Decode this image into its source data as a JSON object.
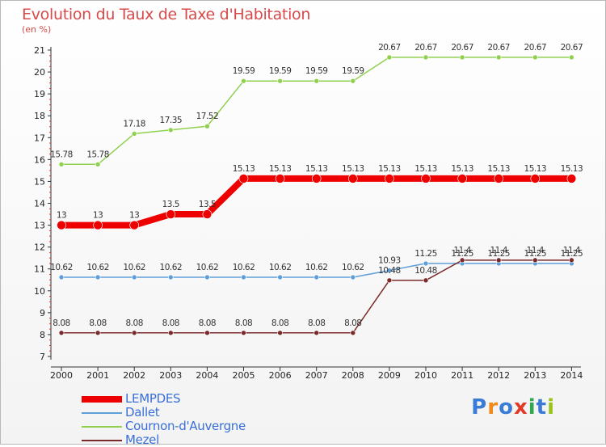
{
  "title": "Evolution du Taux de Taxe d'Habitation",
  "unit_label": "(en %)",
  "brand": {
    "letters": [
      "P",
      "r",
      "o",
      "x",
      "i",
      "t",
      "i"
    ],
    "colors": [
      "#3a7bd5",
      "#f08a1c",
      "#3a7bd5",
      "#e23a2a",
      "#2fa84f",
      "#3a7bd5",
      "#9bc21a"
    ]
  },
  "chart_data": {
    "type": "line",
    "title": "Evolution du Taux de Taxe d'Habitation",
    "ylabel": "(en %)",
    "xlabel": "",
    "ylim": [
      7,
      21
    ],
    "yticks": [
      "7",
      "8",
      "9",
      "10",
      "11",
      "12",
      "13",
      "14",
      "15",
      "16",
      "17",
      "18",
      "19",
      "20",
      "21"
    ],
    "x": [
      "2000",
      "2001",
      "2002",
      "2003",
      "2004",
      "2005",
      "2006",
      "2007",
      "2008",
      "2009",
      "2010",
      "2011",
      "2012",
      "2013",
      "2014"
    ],
    "grid": false,
    "legend_position": "bottom-left",
    "series": [
      {
        "name": "Cournon-d'Auvergne",
        "color": "#8fd14f",
        "values": [
          15.78,
          15.78,
          17.18,
          17.35,
          17.52,
          19.59,
          19.59,
          19.59,
          19.59,
          20.67,
          20.67,
          20.67,
          20.67,
          20.67,
          20.67
        ],
        "labels": [
          "15.78",
          "15.78",
          "17.18",
          "17.35",
          "17.52",
          "19.59",
          "19.59",
          "19.59",
          "19.59",
          "20.67",
          "20.67",
          "20.67",
          "20.67",
          "20.67",
          "20.67"
        ]
      },
      {
        "name": "LEMPDES",
        "color": "#ee0000",
        "values": [
          13,
          13,
          13,
          13.5,
          13.5,
          15.13,
          15.13,
          15.13,
          15.13,
          15.13,
          15.13,
          15.13,
          15.13,
          15.13,
          15.13
        ],
        "labels": [
          "13",
          "13",
          "13",
          "13.5",
          "13.5",
          "15.13",
          "15.13",
          "15.13",
          "15.13",
          "15.13",
          "15.13",
          "15.13",
          "15.13",
          "15.13",
          "15.13"
        ]
      },
      {
        "name": "Dallet",
        "color": "#5f9fd9",
        "values": [
          10.62,
          10.62,
          10.62,
          10.62,
          10.62,
          10.62,
          10.62,
          10.62,
          10.62,
          10.93,
          11.25,
          11.25,
          11.25,
          11.25,
          11.25
        ],
        "labels": [
          "10.62",
          "10.62",
          "10.62",
          "10.62",
          "10.62",
          "10.62",
          "10.62",
          "10.62",
          "10.62",
          "10.93",
          "11.25",
          "11.25",
          "11.25",
          "11.25",
          "11.25"
        ]
      },
      {
        "name": "Mezel",
        "color": "#7a2a2a",
        "values": [
          8.08,
          8.08,
          8.08,
          8.08,
          8.08,
          8.08,
          8.08,
          8.08,
          8.08,
          10.48,
          10.48,
          11.4,
          11.4,
          11.4,
          11.4
        ],
        "labels": [
          "8.08",
          "8.08",
          "8.08",
          "8.08",
          "8.08",
          "8.08",
          "8.08",
          "8.08",
          "8.08",
          "10.48",
          "10.48",
          "11.4",
          "11.4",
          "11.4",
          "11.4"
        ]
      }
    ],
    "legend_order": [
      "LEMPDES",
      "Dallet",
      "Cournon-d'Auvergne",
      "Mezel"
    ]
  }
}
